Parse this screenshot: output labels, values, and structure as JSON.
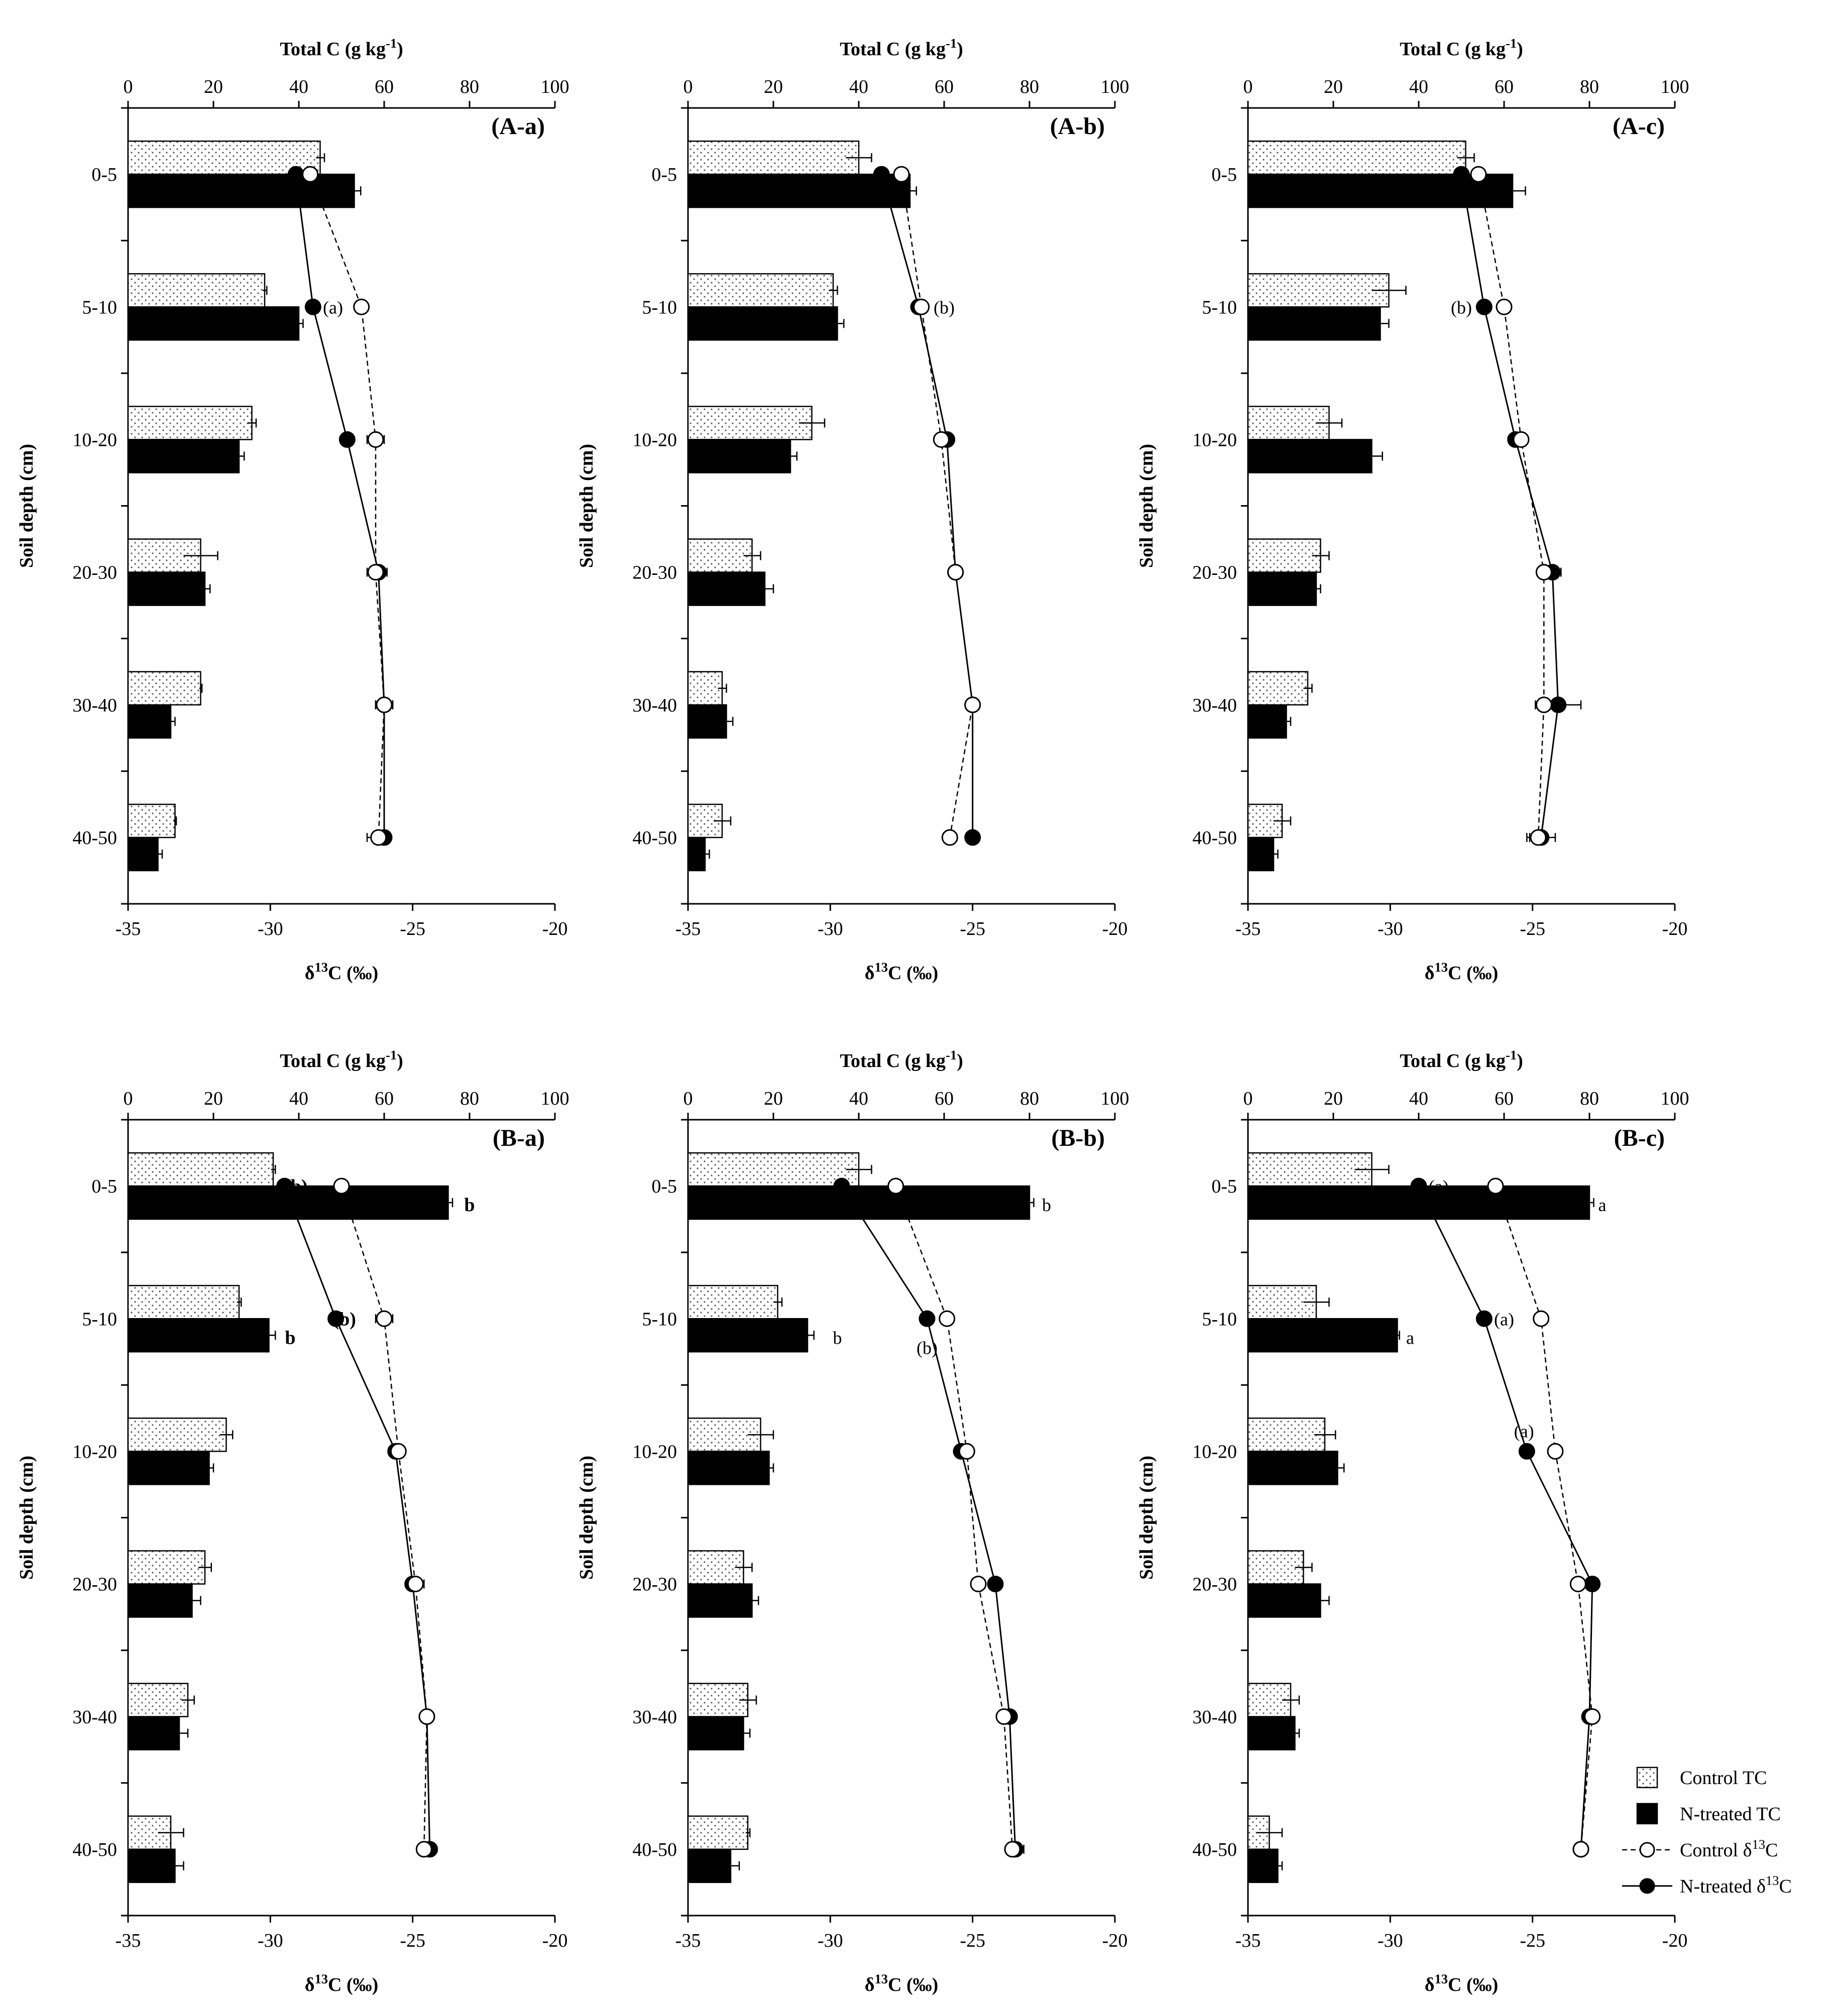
{
  "figure": {
    "depth_categories": [
      "0-5",
      "5-10",
      "10-20",
      "20-30",
      "30-40",
      "40-50"
    ],
    "top_axis_title": "Total C (g kg-1)",
    "bottom_axis_title": "δ13C (‰)",
    "y_axis_title": "Soil depth (cm)",
    "legend": {
      "placement": "bottom-right of last panel",
      "entries": [
        "Control TC",
        "N-treated TC",
        "Control δ13C",
        "N-treated δ13C"
      ]
    },
    "colors": {
      "control_bar": "#ffffff",
      "ntreated_bar": "#000000",
      "control_marker": "#ffffff",
      "ntreated_marker": "#000000"
    }
  },
  "chart_data": [
    {
      "type": "bar+line",
      "panel": "(A-a)",
      "categories": [
        "0-5",
        "5-10",
        "10-20",
        "20-30",
        "30-40",
        "40-50"
      ],
      "top_axis": {
        "label": "Total C (g kg-1)",
        "range": [
          0,
          100
        ],
        "ticks": [
          0,
          20,
          40,
          60,
          80,
          100
        ]
      },
      "bottom_axis": {
        "label": "δ13C (‰)",
        "range": [
          -35,
          -20
        ],
        "ticks": [
          -35,
          -30,
          -25,
          -20
        ]
      },
      "ylabel": "Soil depth (cm)",
      "series": [
        {
          "name": "Control TC",
          "kind": "bar",
          "values": [
            45,
            32,
            29,
            17,
            17,
            11
          ],
          "errors": [
            1,
            0.5,
            1,
            4,
            0.3,
            0.3
          ]
        },
        {
          "name": "N-treated TC",
          "kind": "bar",
          "values": [
            53,
            40,
            26,
            18,
            10,
            7
          ],
          "errors": [
            1.5,
            1,
            1.2,
            1.2,
            1,
            1
          ]
        },
        {
          "name": "Control δ13C",
          "kind": "line",
          "values": [
            -28.6,
            -26.8,
            -26.3,
            -26.3,
            -26.0,
            -26.2
          ],
          "errors": [
            0.1,
            0.2,
            0.3,
            0.3,
            0.3,
            0.4
          ]
        },
        {
          "name": "N-treated δ13C",
          "kind": "line",
          "values": [
            -29.1,
            -28.5,
            -27.3,
            -26.2,
            -26.0,
            -26.0
          ],
          "errors": [
            0.1,
            0.1,
            0.1,
            0.3,
            0.3,
            0.1
          ]
        }
      ],
      "annotations": [
        {
          "text": "(a)",
          "depth": "5-10",
          "anchor": "d13c",
          "x": -27.8,
          "style": "normal"
        }
      ]
    },
    {
      "type": "bar+line",
      "panel": "(A-b)",
      "categories": [
        "0-5",
        "5-10",
        "10-20",
        "20-30",
        "30-40",
        "40-50"
      ],
      "top_axis": {
        "label": "Total C (g kg-1)",
        "range": [
          0,
          100
        ],
        "ticks": [
          0,
          20,
          40,
          60,
          80,
          100
        ]
      },
      "bottom_axis": {
        "label": "δ13C (‰)",
        "range": [
          -35,
          -20
        ],
        "ticks": [
          -35,
          -30,
          -25,
          -20
        ]
      },
      "ylabel": "Soil depth (cm)",
      "series": [
        {
          "name": "Control TC",
          "kind": "bar",
          "values": [
            40,
            34,
            29,
            15,
            8,
            8
          ],
          "errors": [
            3,
            1,
            3,
            2,
            1,
            2
          ]
        },
        {
          "name": "N-treated TC",
          "kind": "bar",
          "values": [
            52,
            35,
            24,
            18,
            9,
            4
          ],
          "errors": [
            1.5,
            1.5,
            1.5,
            2,
            1.5,
            1
          ]
        },
        {
          "name": "Control δ13C",
          "kind": "line",
          "values": [
            -27.5,
            -26.8,
            -26.1,
            -25.6,
            -25.0,
            -25.8
          ],
          "errors": [
            0.1,
            0.1,
            0.1,
            0.2,
            0.2,
            0.1
          ]
        },
        {
          "name": "N-treated δ13C",
          "kind": "line",
          "values": [
            -28.2,
            -26.9,
            -25.9,
            -25.6,
            -25.0,
            -25.0
          ],
          "errors": [
            0.1,
            0.1,
            0.1,
            0.2,
            0.2,
            0.1
          ]
        }
      ],
      "annotations": [
        {
          "text": "(b)",
          "depth": "5-10",
          "anchor": "d13c",
          "x": -26.0,
          "style": "normal"
        }
      ]
    },
    {
      "type": "bar+line",
      "panel": "(A-c)",
      "categories": [
        "0-5",
        "5-10",
        "10-20",
        "20-30",
        "30-40",
        "40-50"
      ],
      "top_axis": {
        "label": "Total C (g kg-1)",
        "range": [
          0,
          100
        ],
        "ticks": [
          0,
          20,
          40,
          60,
          80,
          100
        ]
      },
      "bottom_axis": {
        "label": "δ13C (‰)",
        "range": [
          -35,
          -20
        ],
        "ticks": [
          -35,
          -30,
          -25,
          -20
        ]
      },
      "ylabel": "Soil depth (cm)",
      "series": [
        {
          "name": "Control TC",
          "kind": "bar",
          "values": [
            51,
            33,
            19,
            17,
            14,
            8
          ],
          "errors": [
            2,
            4,
            3,
            2,
            1,
            2
          ]
        },
        {
          "name": "N-treated TC",
          "kind": "bar",
          "values": [
            62,
            31,
            29,
            16,
            9,
            6
          ],
          "errors": [
            3,
            2,
            2.5,
            1,
            1,
            1
          ]
        },
        {
          "name": "Control δ13C",
          "kind": "line",
          "values": [
            -26.9,
            -26.0,
            -25.4,
            -24.6,
            -24.6,
            -24.8
          ],
          "errors": [
            0.1,
            0.1,
            0.2,
            0.2,
            0.2,
            0.3
          ]
        },
        {
          "name": "N-treated δ13C",
          "kind": "line",
          "values": [
            -27.5,
            -26.7,
            -25.6,
            -24.3,
            -24.1,
            -24.7
          ],
          "errors": [
            0.1,
            0.1,
            0.2,
            0.3,
            0.8,
            0.5
          ]
        }
      ],
      "annotations": [
        {
          "text": "(b)",
          "depth": "5-10",
          "anchor": "d13c",
          "x": -27.5,
          "style": "normal"
        }
      ]
    },
    {
      "type": "bar+line",
      "panel": "(B-a)",
      "categories": [
        "0-5",
        "5-10",
        "10-20",
        "20-30",
        "30-40",
        "40-50"
      ],
      "top_axis": {
        "label": "Total C (g kg-1)",
        "range": [
          0,
          100
        ],
        "ticks": [
          0,
          20,
          40,
          60,
          80,
          100
        ]
      },
      "bottom_axis": {
        "label": "δ13C (‰)",
        "range": [
          -35,
          -20
        ],
        "ticks": [
          -35,
          -30,
          -25,
          -20
        ]
      },
      "ylabel": "Soil depth (cm)",
      "series": [
        {
          "name": "Control TC",
          "kind": "bar",
          "values": [
            34,
            26,
            23,
            18,
            14,
            10
          ],
          "errors": [
            0.5,
            0.5,
            1.5,
            1.5,
            1.5,
            3
          ]
        },
        {
          "name": "N-treated TC",
          "kind": "bar",
          "values": [
            75,
            33,
            19,
            15,
            12,
            11
          ],
          "errors": [
            1,
            1.5,
            1,
            2,
            2,
            2
          ]
        },
        {
          "name": "Control δ13C",
          "kind": "line",
          "values": [
            -27.5,
            -26.0,
            -25.5,
            -24.9,
            -24.5,
            -24.6
          ],
          "errors": [
            0.1,
            0.3,
            0.1,
            0.3,
            0.1,
            0.1
          ]
        },
        {
          "name": "N-treated δ13C",
          "kind": "line",
          "values": [
            -29.5,
            -27.7,
            -25.6,
            -25.0,
            -24.5,
            -24.4
          ],
          "errors": [
            0.1,
            0.2,
            0.1,
            0.2,
            0.1,
            0.1
          ]
        }
      ],
      "annotations": [
        {
          "text": "(b)",
          "depth": "0-5",
          "anchor": "d13c",
          "x": -29.1,
          "style": "bold"
        },
        {
          "text": "(b)",
          "depth": "5-10",
          "anchor": "d13c",
          "x": -27.4,
          "style": "bold"
        },
        {
          "text": "b",
          "depth": "0-5",
          "anchor": "tc",
          "x": 80,
          "style": "bold"
        },
        {
          "text": "b",
          "depth": "5-10",
          "anchor": "tc",
          "x": 38,
          "style": "bold"
        }
      ]
    },
    {
      "type": "bar+line",
      "panel": "(B-b)",
      "categories": [
        "0-5",
        "5-10",
        "10-20",
        "20-30",
        "30-40",
        "40-50"
      ],
      "top_axis": {
        "label": "Total C (g kg-1)",
        "range": [
          0,
          100
        ],
        "ticks": [
          0,
          20,
          40,
          60,
          80,
          100
        ]
      },
      "bottom_axis": {
        "label": "δ13C (‰)",
        "range": [
          -35,
          -20
        ],
        "ticks": [
          -35,
          -30,
          -25,
          -20
        ]
      },
      "ylabel": "Soil depth (cm)",
      "series": [
        {
          "name": "Control TC",
          "kind": "bar",
          "values": [
            40,
            21,
            17,
            13,
            14,
            14
          ],
          "errors": [
            3,
            1,
            3,
            2,
            2,
            0.5
          ]
        },
        {
          "name": "N-treated TC",
          "kind": "bar",
          "values": [
            80,
            28,
            19,
            15,
            13,
            10
          ],
          "errors": [
            1,
            1.5,
            1,
            1.5,
            1.5,
            2
          ]
        },
        {
          "name": "Control δ13C",
          "kind": "line",
          "values": [
            -27.7,
            -25.9,
            -25.2,
            -24.8,
            -23.9,
            -23.6
          ],
          "errors": [
            0.1,
            0.1,
            0.1,
            0.1,
            0.1,
            0.2
          ]
        },
        {
          "name": "N-treated δ13C",
          "kind": "line",
          "values": [
            -29.6,
            -26.6,
            -25.4,
            -24.2,
            -23.7,
            -23.5
          ],
          "errors": [
            0.1,
            0.1,
            0.1,
            0.1,
            0.1,
            0.3
          ]
        }
      ],
      "annotations": [
        {
          "text": "(b)",
          "depth": "5-10",
          "anchor": "d13c_below",
          "x": -26.6,
          "style": "normal"
        },
        {
          "text": "b",
          "depth": "0-5",
          "anchor": "tc",
          "x": 84,
          "style": "normal"
        },
        {
          "text": "b",
          "depth": "5-10",
          "anchor": "tc",
          "x": 35,
          "style": "normal"
        }
      ]
    },
    {
      "type": "bar+line",
      "panel": "(B-c)",
      "categories": [
        "0-5",
        "5-10",
        "10-20",
        "20-30",
        "30-40",
        "40-50"
      ],
      "top_axis": {
        "label": "Total C (g kg-1)",
        "range": [
          0,
          100
        ],
        "ticks": [
          0,
          20,
          40,
          60,
          80,
          100
        ]
      },
      "bottom_axis": {
        "label": "δ13C (‰)",
        "range": [
          -35,
          -20
        ],
        "ticks": [
          -35,
          -30,
          -25,
          -20
        ]
      },
      "ylabel": "Soil depth (cm)",
      "series": [
        {
          "name": "Control TC",
          "kind": "bar",
          "values": [
            29,
            16,
            18,
            13,
            10,
            5
          ],
          "errors": [
            4,
            3,
            2.5,
            2,
            2,
            3
          ]
        },
        {
          "name": "N-treated TC",
          "kind": "bar",
          "values": [
            80,
            35,
            21,
            17,
            11,
            7
          ],
          "errors": [
            1,
            0.5,
            1.5,
            2,
            1,
            1
          ]
        },
        {
          "name": "Control δ13C",
          "kind": "line",
          "values": [
            -26.3,
            -24.7,
            -24.2,
            -23.4,
            -22.9,
            -23.3
          ],
          "errors": [
            0.1,
            0.1,
            0.1,
            0.1,
            0.2,
            0.1
          ]
        },
        {
          "name": "N-treated δ13C",
          "kind": "line",
          "values": [
            -29.0,
            -26.7,
            -25.2,
            -22.9,
            -23.0,
            -23.3
          ],
          "errors": [
            0.1,
            0.1,
            0.1,
            0.1,
            0.2,
            0.1
          ]
        }
      ],
      "annotations": [
        {
          "text": "(a)",
          "depth": "0-5",
          "anchor": "d13c",
          "x": -28.3,
          "style": "normal"
        },
        {
          "text": "(a)",
          "depth": "5-10",
          "anchor": "d13c",
          "x": -26.0,
          "style": "normal"
        },
        {
          "text": "(a)",
          "depth": "10-20",
          "anchor": "d13c_above",
          "x": -25.3,
          "style": "normal"
        },
        {
          "text": "a",
          "depth": "0-5",
          "anchor": "tc",
          "x": 83,
          "style": "normal"
        },
        {
          "text": "a",
          "depth": "5-10",
          "anchor": "tc",
          "x": 38,
          "style": "normal"
        }
      ]
    }
  ]
}
